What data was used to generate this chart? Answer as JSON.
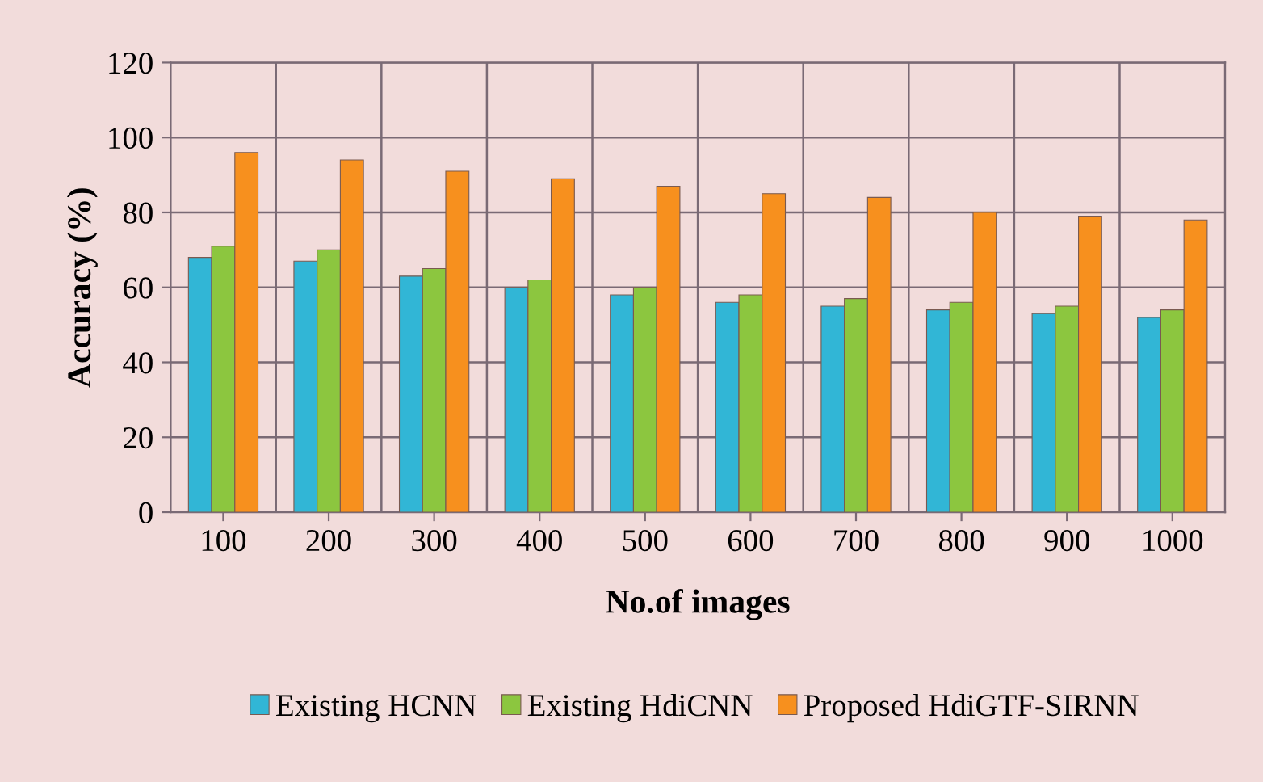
{
  "chart_data": {
    "type": "bar",
    "xlabel": "No.of images",
    "ylabel": "Accuracy (%)",
    "categories": [
      "100",
      "200",
      "300",
      "400",
      "500",
      "600",
      "700",
      "800",
      "900",
      "1000"
    ],
    "series": [
      {
        "name": "Existing HCNN",
        "color": "#31b6d6",
        "values": [
          68,
          67,
          63,
          60,
          58,
          56,
          55,
          54,
          53,
          52
        ]
      },
      {
        "name": "Existing HdiCNN",
        "color": "#8cc63f",
        "values": [
          71,
          70,
          65,
          62,
          60,
          58,
          57,
          56,
          55,
          54
        ]
      },
      {
        "name": "Proposed HdiGTF-SIRNN",
        "color": "#f7901e",
        "values": [
          96,
          94,
          91,
          89,
          87,
          85,
          84,
          80,
          79,
          78
        ]
      }
    ],
    "ylim": [
      0,
      120
    ],
    "yticks": [
      0,
      20,
      40,
      60,
      80,
      100,
      120
    ],
    "grid": true,
    "legend": "bottom"
  }
}
